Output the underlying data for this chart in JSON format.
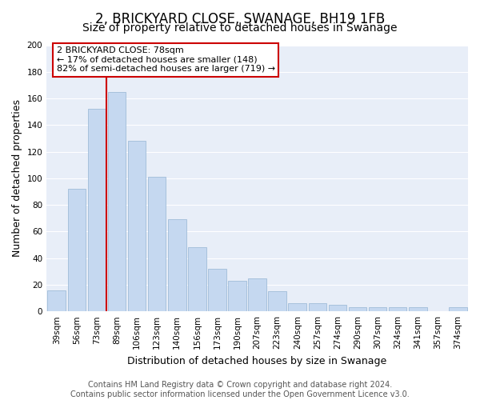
{
  "title": "2, BRICKYARD CLOSE, SWANAGE, BH19 1FB",
  "subtitle": "Size of property relative to detached houses in Swanage",
  "xlabel": "Distribution of detached houses by size in Swanage",
  "ylabel": "Number of detached properties",
  "bar_labels": [
    "39sqm",
    "56sqm",
    "73sqm",
    "89sqm",
    "106sqm",
    "123sqm",
    "140sqm",
    "156sqm",
    "173sqm",
    "190sqm",
    "207sqm",
    "223sqm",
    "240sqm",
    "257sqm",
    "274sqm",
    "290sqm",
    "307sqm",
    "324sqm",
    "341sqm",
    "357sqm",
    "374sqm"
  ],
  "bar_values": [
    16,
    92,
    152,
    165,
    128,
    101,
    69,
    48,
    32,
    23,
    25,
    15,
    6,
    6,
    5,
    3,
    3,
    3,
    3,
    0,
    3
  ],
  "bar_color": "#c5d8f0",
  "bar_edge_color": "#a0bcd8",
  "vline_x_index": 2.5,
  "vline_color": "#cc0000",
  "annotation_title": "2 BRICKYARD CLOSE: 78sqm",
  "annotation_line1": "← 17% of detached houses are smaller (148)",
  "annotation_line2": "82% of semi-detached houses are larger (719) →",
  "annotation_box_facecolor": "#ffffff",
  "annotation_box_edgecolor": "#cc0000",
  "ylim": [
    0,
    200
  ],
  "yticks": [
    0,
    20,
    40,
    60,
    80,
    100,
    120,
    140,
    160,
    180,
    200
  ],
  "footer_line1": "Contains HM Land Registry data © Crown copyright and database right 2024.",
  "footer_line2": "Contains public sector information licensed under the Open Government Licence v3.0.",
  "bg_color": "#ffffff",
  "plot_bg_color": "#e8eef8",
  "grid_color": "#ffffff",
  "title_fontsize": 12,
  "subtitle_fontsize": 10,
  "axis_label_fontsize": 9,
  "tick_fontsize": 7.5,
  "annotation_fontsize": 8,
  "footer_fontsize": 7
}
